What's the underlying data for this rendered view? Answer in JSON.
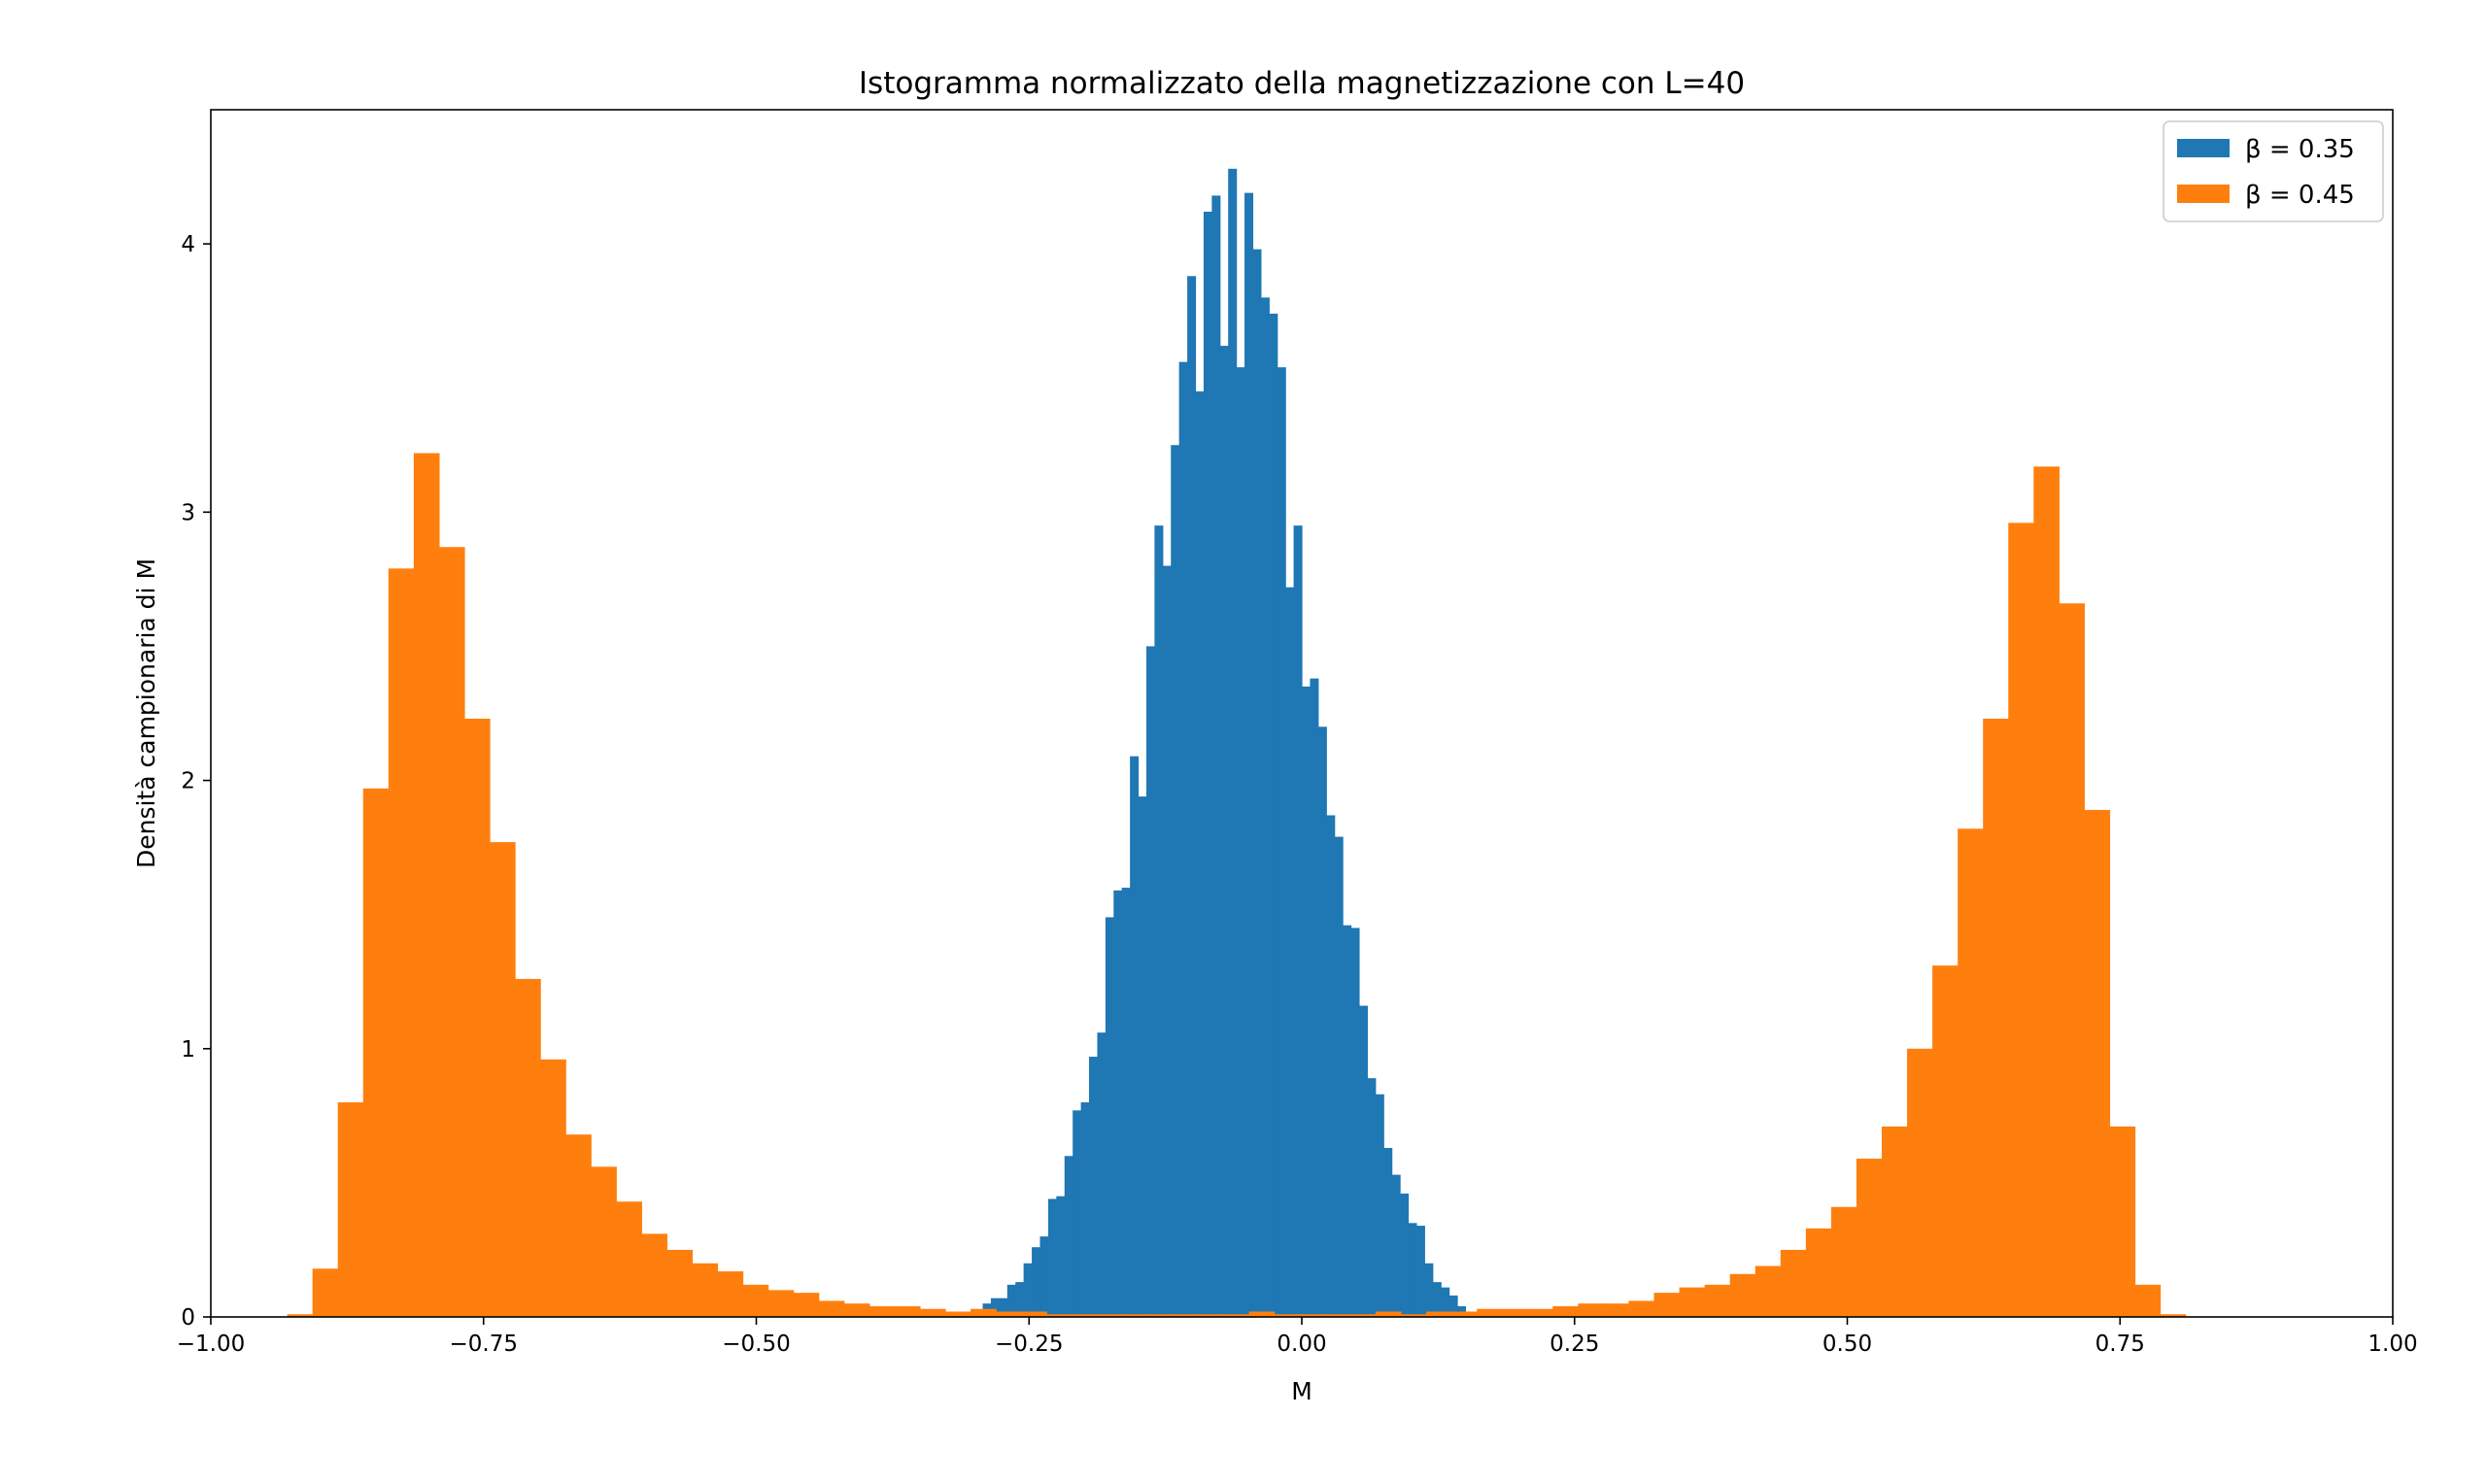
{
  "chart_data": {
    "type": "bar",
    "title": "Istogramma normalizzato della magnetizzazione con L=40",
    "xlabel": "M",
    "ylabel": "Densità campionaria di M",
    "xlim": [
      -1.0,
      1.0
    ],
    "ylim": [
      0,
      4.5
    ],
    "xticks": [
      -1.0,
      -0.75,
      -0.5,
      -0.25,
      0.0,
      0.25,
      0.5,
      0.75,
      1.0
    ],
    "xtick_labels": [
      "−1.00",
      "−0.75",
      "−0.50",
      "−0.25",
      "0.00",
      "0.25",
      "0.50",
      "0.75",
      "1.00"
    ],
    "yticks": [
      0,
      1,
      2,
      3,
      4
    ],
    "ytick_labels": [
      "0",
      "1",
      "2",
      "3",
      "4"
    ],
    "grid": false,
    "legend_position": "top-right",
    "series": [
      {
        "name": "β = 0.35",
        "color": "#1f77b4",
        "bin_start": -0.3,
        "bin_width": 0.0075,
        "values": [
          0.02,
          0.05,
          0.07,
          0.07,
          0.12,
          0.13,
          0.2,
          0.26,
          0.3,
          0.44,
          0.45,
          0.6,
          0.77,
          0.8,
          0.97,
          1.06,
          1.49,
          1.59,
          1.6,
          2.09,
          1.94,
          2.5,
          2.95,
          2.8,
          3.25,
          3.56,
          3.88,
          3.45,
          4.12,
          4.18,
          3.62,
          4.28,
          3.54,
          4.19,
          3.98,
          3.8,
          3.74,
          3.54,
          2.72,
          2.95,
          2.35,
          2.38,
          2.2,
          1.87,
          1.79,
          1.46,
          1.45,
          1.16,
          0.89,
          0.83,
          0.63,
          0.53,
          0.46,
          0.35,
          0.34,
          0.2,
          0.13,
          0.11,
          0.08,
          0.04,
          0.02
        ]
      },
      {
        "name": "β = 0.45",
        "color": "#ff7f0e",
        "bin_start": -0.93,
        "bin_width": 0.0232,
        "values": [
          0.01,
          0.18,
          0.8,
          1.97,
          2.79,
          3.22,
          2.87,
          2.23,
          1.77,
          1.26,
          0.96,
          0.68,
          0.56,
          0.43,
          0.31,
          0.25,
          0.2,
          0.17,
          0.12,
          0.1,
          0.09,
          0.06,
          0.05,
          0.04,
          0.04,
          0.03,
          0.02,
          0.03,
          0.02,
          0.02,
          0.01,
          0.01,
          0.01,
          0.01,
          0.01,
          0.01,
          0.01,
          0.01,
          0.02,
          0.01,
          0.01,
          0.01,
          0.01,
          0.02,
          0.01,
          0.02,
          0.02,
          0.03,
          0.03,
          0.03,
          0.04,
          0.05,
          0.05,
          0.06,
          0.09,
          0.11,
          0.12,
          0.16,
          0.19,
          0.25,
          0.33,
          0.41,
          0.59,
          0.71,
          1.0,
          1.31,
          1.82,
          2.23,
          2.96,
          3.17,
          2.66,
          1.89,
          0.71,
          0.12,
          0.01
        ]
      }
    ]
  }
}
